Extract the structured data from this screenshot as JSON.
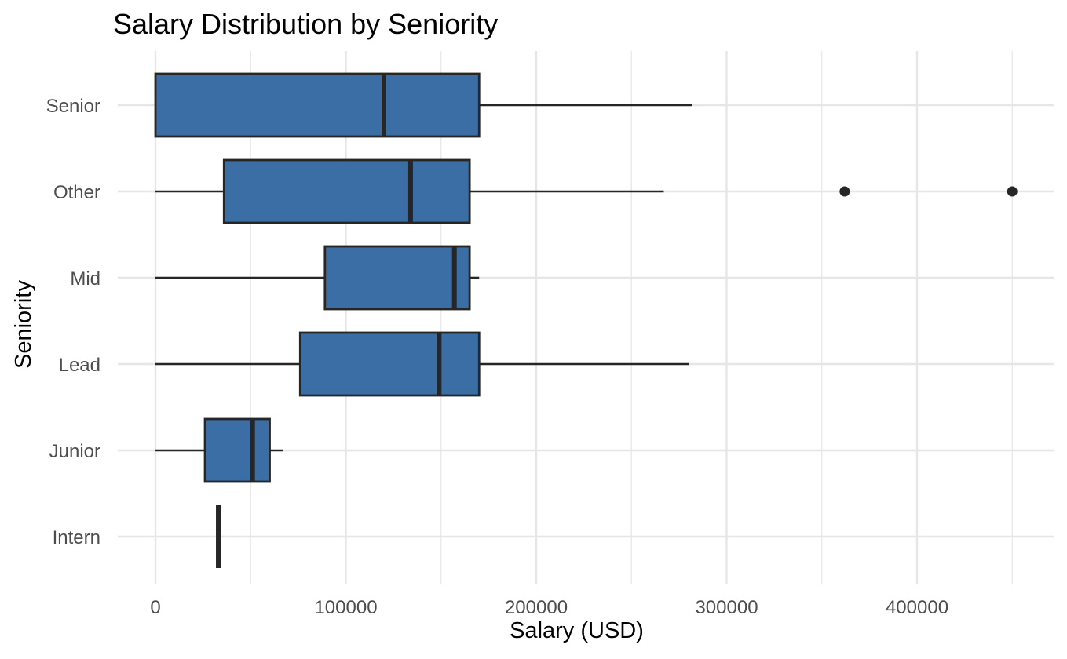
{
  "chart_data": {
    "type": "boxplot",
    "orientation": "horizontal",
    "title": "Salary Distribution by Seniority",
    "xlabel": "Salary (USD)",
    "ylabel": "Seniority",
    "xlim": [
      -15000,
      472000
    ],
    "x_ticks": [
      0,
      100000,
      200000,
      300000,
      400000
    ],
    "x_tick_labels": [
      "0",
      "100000",
      "200000",
      "300000",
      "400000"
    ],
    "categories": [
      "Senior",
      "Other",
      "Mid",
      "Lead",
      "Junior",
      "Intern"
    ],
    "boxes": [
      {
        "category": "Senior",
        "whisker_low": 0,
        "q1": 0,
        "median": 120000,
        "q3": 170000,
        "whisker_high": 282000,
        "outliers": []
      },
      {
        "category": "Other",
        "whisker_low": 0,
        "q1": 36000,
        "median": 134000,
        "q3": 165000,
        "whisker_high": 267000,
        "outliers": [
          362000,
          450000
        ]
      },
      {
        "category": "Mid",
        "whisker_low": 0,
        "q1": 89000,
        "median": 157000,
        "q3": 165000,
        "whisker_high": 170000,
        "outliers": []
      },
      {
        "category": "Lead",
        "whisker_low": 0,
        "q1": 76000,
        "median": 149000,
        "q3": 170000,
        "whisker_high": 280000,
        "outliers": []
      },
      {
        "category": "Junior",
        "whisker_low": 0,
        "q1": 26000,
        "median": 51000,
        "q3": 60000,
        "whisker_high": 67000,
        "outliers": []
      },
      {
        "category": "Intern",
        "whisker_low": 33000,
        "q1": 33000,
        "median": 33000,
        "q3": 33000,
        "whisker_high": 33000,
        "outliers": []
      }
    ],
    "grid": true,
    "legend": "none",
    "colors": {
      "box_fill": "#3a6ea5",
      "box_stroke": "#262626",
      "grid": "#e6e6e6",
      "tick_text": "#4d4d4d"
    }
  }
}
